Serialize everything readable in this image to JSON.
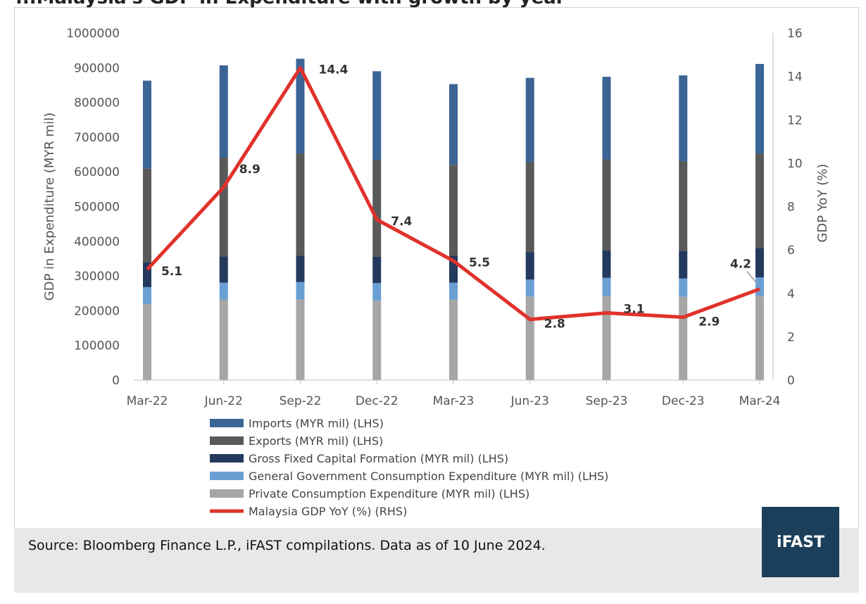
{
  "header": {
    "clipped_title": "...Malaysia's GDP in Expenditure with growth by year"
  },
  "footer": {
    "source": "Source: Bloomberg Finance L.P., iFAST compilations. Data as of 10 June 2024.",
    "logo_text": "iFAST",
    "logo_color": "#1b3f5a"
  },
  "chart_data": {
    "type": "bar",
    "stacked": true,
    "categories": [
      "Mar-22",
      "Jun-22",
      "Sep-22",
      "Dec-22",
      "Mar-23",
      "Jun-23",
      "Sep-23",
      "Dec-23",
      "Mar-24"
    ],
    "ylabel": "GDP in Expenditure (MYR mil)",
    "y2label": "GDP YoY (%)",
    "ylim": [
      0,
      1000000
    ],
    "y2lim": [
      0,
      16
    ],
    "yticks": [
      "0",
      "100000",
      "200000",
      "300000",
      "400000",
      "500000",
      "600000",
      "700000",
      "800000",
      "900000",
      "1000000"
    ],
    "y2ticks": [
      "0",
      "2",
      "4",
      "6",
      "8",
      "10",
      "12",
      "14",
      "16"
    ],
    "series": [
      {
        "name": "Private Consumption Expenditure (MYR mil) (LHS)",
        "color": "#a6a6a6",
        "axis": "left",
        "values": [
          220000,
          232000,
          232000,
          229000,
          232000,
          241000,
          242000,
          240000,
          243000
        ]
      },
      {
        "name": "General Government Consumption Expenditure  (MYR mil) (LHS)",
        "color": "#6a9fd4",
        "axis": "left",
        "values": [
          48000,
          49000,
          51000,
          51000,
          49000,
          49000,
          53000,
          53000,
          53000
        ]
      },
      {
        "name": "Gross Fixed Capital Formation (MYR mil) (LHS)",
        "color": "#23395d",
        "axis": "left",
        "values": [
          72000,
          75000,
          75000,
          75000,
          77000,
          79000,
          79000,
          79000,
          85000
        ]
      },
      {
        "name": "Exports (MYR mil) (LHS)",
        "color": "#595959",
        "axis": "left",
        "values": [
          270000,
          285000,
          295000,
          280000,
          262000,
          260000,
          262000,
          258000,
          272000
        ]
      },
      {
        "name": "Imports (MYR mil) (LHS)",
        "color": "#3a6594",
        "axis": "left",
        "values": [
          253000,
          266000,
          273000,
          255000,
          233000,
          242000,
          238000,
          248000,
          258000
        ]
      }
    ],
    "line": {
      "name": "Malaysia GDP YoY (%) (RHS)",
      "color": "#e0322b",
      "axis": "right",
      "values": [
        5.1,
        8.9,
        14.4,
        7.4,
        5.5,
        2.8,
        3.1,
        2.9,
        4.2
      ],
      "labels": [
        "5.1",
        "8.9",
        "14.4",
        "7.4",
        "5.5",
        "2.8",
        "3.1",
        "2.9",
        "4.2"
      ]
    },
    "legend_order": [
      "Imports (MYR mil) (LHS)",
      "Exports (MYR mil) (LHS)",
      "Gross Fixed Capital Formation (MYR mil) (LHS)",
      "General Government Consumption Expenditure  (MYR mil) (LHS)",
      "Private Consumption Expenditure (MYR mil) (LHS)",
      "Malaysia GDP YoY (%) (RHS)"
    ],
    "legend_position": "bottom",
    "grid": false
  }
}
